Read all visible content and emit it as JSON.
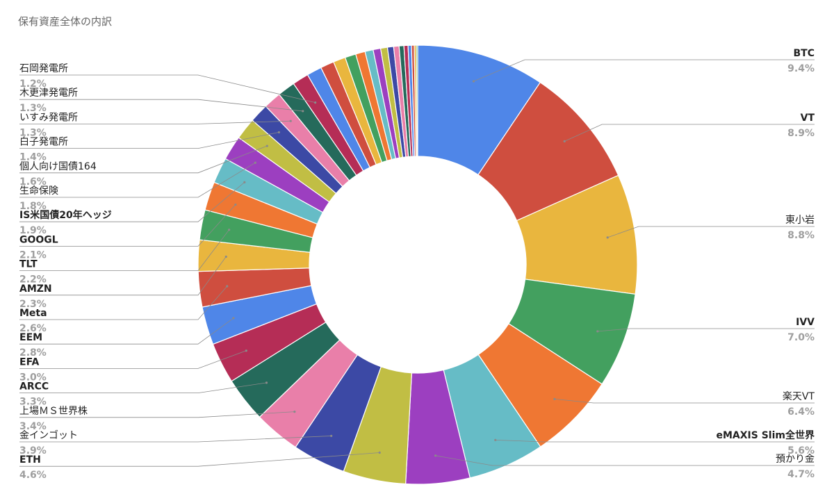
{
  "chart_data": {
    "type": "pie",
    "donut": true,
    "title": "保有資産全体の内訳",
    "slices": [
      {
        "label": "BTC",
        "value": 9.4,
        "pct_label": "9.4%",
        "color": "#4f86e8"
      },
      {
        "label": "VT",
        "value": 8.9,
        "pct_label": "8.9%",
        "color": "#cf4e3f"
      },
      {
        "label": "東小岩",
        "value": 8.8,
        "pct_label": "8.8%",
        "color": "#e9b63e"
      },
      {
        "label": "IVV",
        "value": 7.0,
        "pct_label": "7.0%",
        "color": "#43a05f"
      },
      {
        "label": "楽天VT",
        "value": 6.4,
        "pct_label": "6.4%",
        "color": "#ef7733"
      },
      {
        "label": "eMAXIS Slim全世界",
        "value": 5.6,
        "pct_label": "5.6%",
        "color": "#66bcc6"
      },
      {
        "label": "預かり金",
        "value": 4.7,
        "pct_label": "4.7%",
        "color": "#9c3fc0"
      },
      {
        "label": "ETH",
        "value": 4.6,
        "pct_label": "4.6%",
        "color": "#c1be44"
      },
      {
        "label": "金インゴット",
        "value": 3.9,
        "pct_label": "3.9%",
        "color": "#3c49a5"
      },
      {
        "label": "上場ＭＳ世界株",
        "value": 3.4,
        "pct_label": "3.4%",
        "color": "#e97fa9"
      },
      {
        "label": "ARCC",
        "value": 3.3,
        "pct_label": "3.3%",
        "color": "#256a5b"
      },
      {
        "label": "EFA",
        "value": 3.0,
        "pct_label": "3.0%",
        "color": "#b52d56"
      },
      {
        "label": "EEM",
        "value": 2.8,
        "pct_label": "2.8%",
        "color": "#4f86e8"
      },
      {
        "label": "Meta",
        "value": 2.6,
        "pct_label": "2.6%",
        "color": "#cf4e3f"
      },
      {
        "label": "AMZN",
        "value": 2.3,
        "pct_label": "2.3%",
        "color": "#e9b63e"
      },
      {
        "label": "TLT",
        "value": 2.2,
        "pct_label": "2.2%",
        "color": "#43a05f"
      },
      {
        "label": "GOOGL",
        "value": 2.1,
        "pct_label": "2.1%",
        "color": "#ef7733"
      },
      {
        "label": "IS米国債20年ヘッジ",
        "value": 1.9,
        "pct_label": "1.9%",
        "color": "#66bcc6"
      },
      {
        "label": "生命保険",
        "value": 1.8,
        "pct_label": "1.8%",
        "color": "#9c3fc0"
      },
      {
        "label": "個人向け国債164",
        "value": 1.6,
        "pct_label": "1.6%",
        "color": "#c1be44"
      },
      {
        "label": "白子発電所",
        "value": 1.4,
        "pct_label": "1.4%",
        "color": "#3c49a5"
      },
      {
        "label": "いすみ発電所",
        "value": 1.3,
        "pct_label": "1.3%",
        "color": "#e97fa9"
      },
      {
        "label": "木更津発電所",
        "value": 1.3,
        "pct_label": "1.3%",
        "color": "#256a5b"
      },
      {
        "label": "石岡発電所",
        "value": 1.2,
        "pct_label": "1.2%",
        "color": "#b52d56"
      },
      {
        "label": "",
        "value": 1.1,
        "pct_label": "",
        "color": "#4f86e8"
      },
      {
        "label": "",
        "value": 1.0,
        "pct_label": "",
        "color": "#cf4e3f"
      },
      {
        "label": "",
        "value": 0.9,
        "pct_label": "",
        "color": "#e9b63e"
      },
      {
        "label": "",
        "value": 0.8,
        "pct_label": "",
        "color": "#43a05f"
      },
      {
        "label": "",
        "value": 0.7,
        "pct_label": "",
        "color": "#ef7733"
      },
      {
        "label": "",
        "value": 0.6,
        "pct_label": "",
        "color": "#66bcc6"
      },
      {
        "label": "",
        "value": 0.55,
        "pct_label": "",
        "color": "#9c3fc0"
      },
      {
        "label": "",
        "value": 0.5,
        "pct_label": "",
        "color": "#c1be44"
      },
      {
        "label": "",
        "value": 0.45,
        "pct_label": "",
        "color": "#3c49a5"
      },
      {
        "label": "",
        "value": 0.4,
        "pct_label": "",
        "color": "#e97fa9"
      },
      {
        "label": "",
        "value": 0.35,
        "pct_label": "",
        "color": "#256a5b"
      },
      {
        "label": "",
        "value": 0.3,
        "pct_label": "",
        "color": "#b52d56"
      },
      {
        "label": "",
        "value": 0.25,
        "pct_label": "",
        "color": "#4f86e8"
      },
      {
        "label": "",
        "value": 0.2,
        "pct_label": "",
        "color": "#cf4e3f"
      },
      {
        "label": "",
        "value": 0.15,
        "pct_label": "",
        "color": "#e9b63e"
      },
      {
        "label": "",
        "value": 0.1,
        "pct_label": "",
        "color": "#43a05f"
      }
    ],
    "legend": "none"
  }
}
